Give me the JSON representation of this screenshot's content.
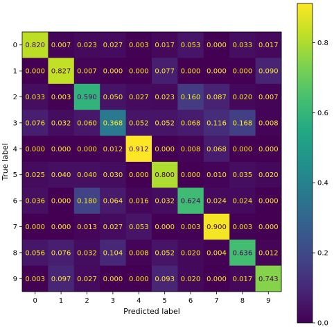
{
  "chart_data": {
    "type": "heatmap",
    "title": "",
    "xlabel": "Predicted label",
    "ylabel": "True label",
    "x_categories": [
      "0",
      "1",
      "2",
      "3",
      "4",
      "5",
      "6",
      "7",
      "8",
      "9"
    ],
    "y_categories": [
      "0",
      "1",
      "2",
      "3",
      "4",
      "5",
      "6",
      "7",
      "8",
      "9"
    ],
    "matrix": [
      [
        0.82,
        0.007,
        0.023,
        0.027,
        0.003,
        0.017,
        0.053,
        0.0,
        0.033,
        0.017
      ],
      [
        0.0,
        0.827,
        0.007,
        0.0,
        0.0,
        0.077,
        0.0,
        0.0,
        0.0,
        0.09
      ],
      [
        0.033,
        0.003,
        0.59,
        0.05,
        0.027,
        0.023,
        0.16,
        0.087,
        0.02,
        0.007
      ],
      [
        0.076,
        0.032,
        0.06,
        0.368,
        0.052,
        0.052,
        0.068,
        0.116,
        0.168,
        0.008
      ],
      [
        0.0,
        0.0,
        0.0,
        0.012,
        0.912,
        0.0,
        0.008,
        0.068,
        0.0,
        0.0
      ],
      [
        0.025,
        0.04,
        0.04,
        0.03,
        0.0,
        0.8,
        0.0,
        0.01,
        0.035,
        0.02
      ],
      [
        0.036,
        0.0,
        0.18,
        0.064,
        0.016,
        0.032,
        0.624,
        0.024,
        0.024,
        0.0
      ],
      [
        0.0,
        0.0,
        0.013,
        0.027,
        0.053,
        0.0,
        0.003,
        0.9,
        0.003,
        0.0
      ],
      [
        0.056,
        0.076,
        0.032,
        0.104,
        0.008,
        0.052,
        0.02,
        0.004,
        0.636,
        0.012
      ],
      [
        0.003,
        0.097,
        0.027,
        0.0,
        0.0,
        0.093,
        0.02,
        0.0,
        0.017,
        0.743
      ]
    ],
    "value_format": "0.000",
    "colormap": "viridis",
    "colorbar": {
      "range": [
        0.0,
        0.912
      ],
      "ticks": [
        0.0,
        0.2,
        0.4,
        0.6,
        0.8
      ],
      "tick_labels": [
        "0.0",
        "0.2",
        "0.4",
        "0.6",
        "0.8"
      ]
    },
    "text_colors": {
      "on_dark": "#fde725",
      "on_light": "#440154"
    },
    "grid": false
  }
}
